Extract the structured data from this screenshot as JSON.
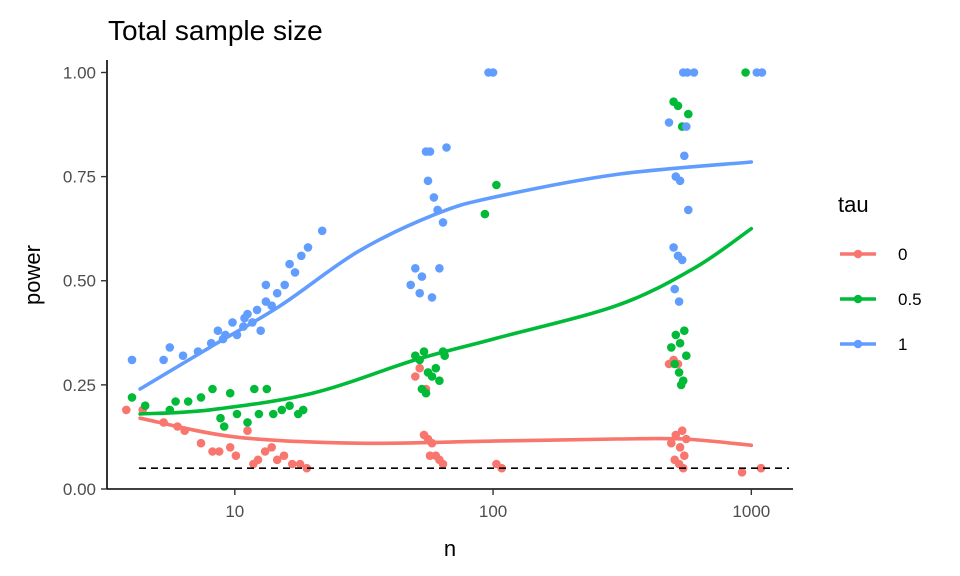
{
  "chart_data": {
    "type": "scatter",
    "title": "Total sample size",
    "xlabel": "n",
    "ylabel": "power",
    "x_scale": "log10",
    "xlim": [
      3.2,
      1450
    ],
    "ylim": [
      0,
      1.03
    ],
    "x_ticks": [
      {
        "value": 10,
        "label": "10"
      },
      {
        "value": 100,
        "label": "100"
      },
      {
        "value": 1000,
        "label": "1000"
      }
    ],
    "y_ticks": [
      {
        "value": 0,
        "label": "0.00"
      },
      {
        "value": 0.25,
        "label": "0.25"
      },
      {
        "value": 0.5,
        "label": "0.50"
      },
      {
        "value": 0.75,
        "label": "0.75"
      },
      {
        "value": 1,
        "label": "1.00"
      }
    ],
    "reference_line": {
      "y": 0.05,
      "style": "dashed",
      "color": "#000000"
    },
    "grid": false,
    "legend": {
      "title": "tau",
      "position": "right"
    },
    "series": [
      {
        "name": "0",
        "color": "#F8766D",
        "points": [
          [
            3.8,
            0.19
          ],
          [
            4.4,
            0.19
          ],
          [
            5.3,
            0.16
          ],
          [
            6.0,
            0.15
          ],
          [
            6.4,
            0.14
          ],
          [
            7.4,
            0.11
          ],
          [
            8.2,
            0.09
          ],
          [
            8.7,
            0.09
          ],
          [
            9.6,
            0.1
          ],
          [
            10.1,
            0.08
          ],
          [
            11.2,
            0.14
          ],
          [
            12.3,
            0.07
          ],
          [
            13.1,
            0.09
          ],
          [
            14.6,
            0.07
          ],
          [
            15.5,
            0.08
          ],
          [
            16.7,
            0.06
          ],
          [
            17.9,
            0.06
          ],
          [
            19.0,
            0.05
          ],
          [
            13.9,
            0.1
          ],
          [
            11.8,
            0.06
          ],
          [
            50,
            0.27
          ],
          [
            52,
            0.29
          ],
          [
            55,
            0.24
          ],
          [
            54,
            0.13
          ],
          [
            56,
            0.12
          ],
          [
            58,
            0.11
          ],
          [
            60,
            0.08
          ],
          [
            62,
            0.07
          ],
          [
            64,
            0.06
          ],
          [
            57,
            0.08
          ],
          [
            103,
            0.06
          ],
          [
            108,
            0.05
          ],
          [
            480,
            0.3
          ],
          [
            500,
            0.31
          ],
          [
            520,
            0.3
          ],
          [
            540,
            0.14
          ],
          [
            510,
            0.13
          ],
          [
            560,
            0.12
          ],
          [
            490,
            0.11
          ],
          [
            530,
            0.1
          ],
          [
            550,
            0.08
          ],
          [
            505,
            0.07
          ],
          [
            525,
            0.06
          ],
          [
            545,
            0.05
          ],
          [
            920,
            0.04
          ],
          [
            1090,
            0.05
          ]
        ],
        "trend": [
          [
            4.3,
            0.17
          ],
          [
            10,
            0.125
          ],
          [
            30,
            0.11
          ],
          [
            100,
            0.115
          ],
          [
            300,
            0.12
          ],
          [
            550,
            0.12
          ],
          [
            1000,
            0.105
          ]
        ]
      },
      {
        "name": "0.5",
        "color": "#00BA38",
        "points": [
          [
            4.0,
            0.22
          ],
          [
            4.5,
            0.2
          ],
          [
            5.6,
            0.19
          ],
          [
            5.9,
            0.21
          ],
          [
            6.6,
            0.21
          ],
          [
            7.4,
            0.22
          ],
          [
            8.2,
            0.24
          ],
          [
            8.8,
            0.17
          ],
          [
            9.6,
            0.23
          ],
          [
            10.2,
            0.18
          ],
          [
            11.2,
            0.16
          ],
          [
            11.9,
            0.24
          ],
          [
            12.4,
            0.18
          ],
          [
            13.3,
            0.24
          ],
          [
            14.1,
            0.18
          ],
          [
            15.2,
            0.19
          ],
          [
            16.3,
            0.2
          ],
          [
            17.6,
            0.18
          ],
          [
            18.4,
            0.19
          ],
          [
            9.1,
            0.15
          ],
          [
            50,
            0.32
          ],
          [
            52,
            0.31
          ],
          [
            54,
            0.33
          ],
          [
            56,
            0.28
          ],
          [
            58,
            0.27
          ],
          [
            60,
            0.29
          ],
          [
            62,
            0.26
          ],
          [
            53,
            0.24
          ],
          [
            55,
            0.23
          ],
          [
            64,
            0.33
          ],
          [
            65,
            0.32
          ],
          [
            93,
            0.66
          ],
          [
            103,
            0.73
          ],
          [
            500,
            0.93
          ],
          [
            520,
            0.92
          ],
          [
            540,
            0.87
          ],
          [
            570,
            0.9
          ],
          [
            510,
            0.37
          ],
          [
            530,
            0.35
          ],
          [
            550,
            0.38
          ],
          [
            490,
            0.34
          ],
          [
            560,
            0.32
          ],
          [
            505,
            0.3
          ],
          [
            525,
            0.28
          ],
          [
            545,
            0.26
          ],
          [
            535,
            0.25
          ],
          [
            950,
            1.0
          ]
        ],
        "trend": [
          [
            4.3,
            0.18
          ],
          [
            8,
            0.19
          ],
          [
            20,
            0.23
          ],
          [
            50,
            0.31
          ],
          [
            100,
            0.36
          ],
          [
            300,
            0.44
          ],
          [
            600,
            0.53
          ],
          [
            1000,
            0.625
          ]
        ]
      },
      {
        "name": "1",
        "color": "#619CFF",
        "points": [
          [
            4.0,
            0.31
          ],
          [
            5.3,
            0.31
          ],
          [
            5.6,
            0.34
          ],
          [
            6.3,
            0.32
          ],
          [
            7.2,
            0.33
          ],
          [
            8.1,
            0.35
          ],
          [
            8.6,
            0.38
          ],
          [
            9.2,
            0.37
          ],
          [
            9.8,
            0.4
          ],
          [
            10.2,
            0.37
          ],
          [
            10.8,
            0.39
          ],
          [
            11.2,
            0.42
          ],
          [
            11.7,
            0.4
          ],
          [
            12.2,
            0.43
          ],
          [
            12.6,
            0.38
          ],
          [
            13.2,
            0.45
          ],
          [
            13.9,
            0.44
          ],
          [
            14.6,
            0.47
          ],
          [
            15.6,
            0.49
          ],
          [
            16.3,
            0.54
          ],
          [
            17.1,
            0.52
          ],
          [
            18.1,
            0.56
          ],
          [
            19.2,
            0.58
          ],
          [
            21.8,
            0.62
          ],
          [
            13.2,
            0.49
          ],
          [
            9.0,
            0.36
          ],
          [
            10.9,
            0.41
          ],
          [
            48,
            0.49
          ],
          [
            50,
            0.53
          ],
          [
            52,
            0.47
          ],
          [
            53,
            0.51
          ],
          [
            55,
            0.81
          ],
          [
            57,
            0.81
          ],
          [
            59,
            0.7
          ],
          [
            61,
            0.67
          ],
          [
            62,
            0.53
          ],
          [
            64,
            0.64
          ],
          [
            66,
            0.82
          ],
          [
            56,
            0.74
          ],
          [
            58,
            0.46
          ],
          [
            96,
            1.0
          ],
          [
            100,
            1.0
          ],
          [
            480,
            0.88
          ],
          [
            500,
            0.58
          ],
          [
            520,
            0.56
          ],
          [
            540,
            0.55
          ],
          [
            560,
            0.87
          ],
          [
            550,
            0.8
          ],
          [
            510,
            0.75
          ],
          [
            530,
            0.74
          ],
          [
            570,
            0.67
          ],
          [
            505,
            0.48
          ],
          [
            525,
            0.45
          ],
          [
            545,
            1.0
          ],
          [
            565,
            1.0
          ],
          [
            600,
            1.0
          ],
          [
            1050,
            1.0
          ],
          [
            1100,
            1.0
          ]
        ],
        "trend": [
          [
            4.3,
            0.24
          ],
          [
            8,
            0.34
          ],
          [
            15,
            0.44
          ],
          [
            30,
            0.57
          ],
          [
            60,
            0.66
          ],
          [
            100,
            0.7
          ],
          [
            300,
            0.755
          ],
          [
            1000,
            0.785
          ]
        ]
      }
    ]
  }
}
